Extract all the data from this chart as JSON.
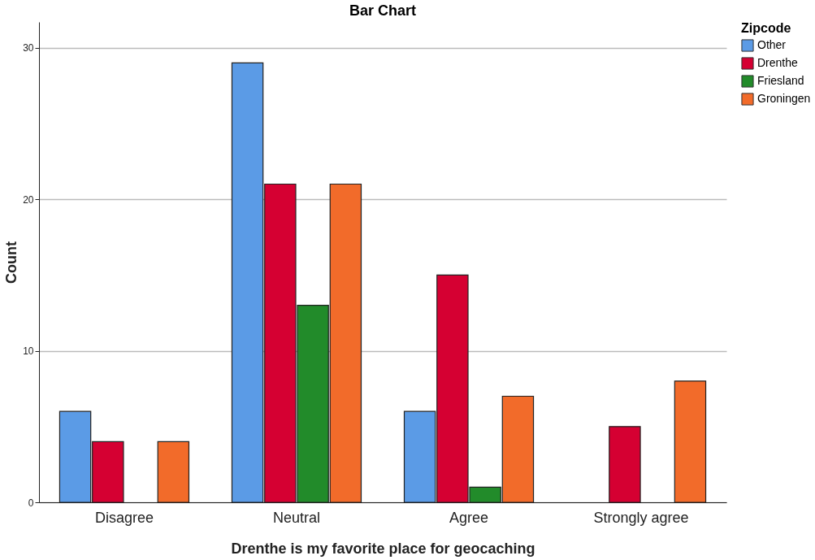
{
  "chart_data": {
    "type": "bar",
    "title": "Bar Chart",
    "xlabel": "Drenthe is my favorite place for geocaching",
    "ylabel": "Count",
    "legend_title": "Zipcode",
    "categories": [
      "Disagree",
      "Neutral",
      "Agree",
      "Strongly agree"
    ],
    "series": [
      {
        "name": "Other",
        "color": "#5b9be6",
        "values": [
          6,
          29,
          6,
          null
        ]
      },
      {
        "name": "Drenthe",
        "color": "#d50032",
        "values": [
          4,
          21,
          15,
          5
        ]
      },
      {
        "name": "Friesland",
        "color": "#228b2a",
        "values": [
          null,
          13,
          1,
          null
        ]
      },
      {
        "name": "Groningen",
        "color": "#f26b2a",
        "values": [
          4,
          21,
          7,
          8
        ]
      }
    ],
    "ylim": [
      0,
      31.7
    ],
    "yticks": [
      0,
      10,
      20,
      30
    ],
    "grid": "y",
    "legend": "top right"
  }
}
